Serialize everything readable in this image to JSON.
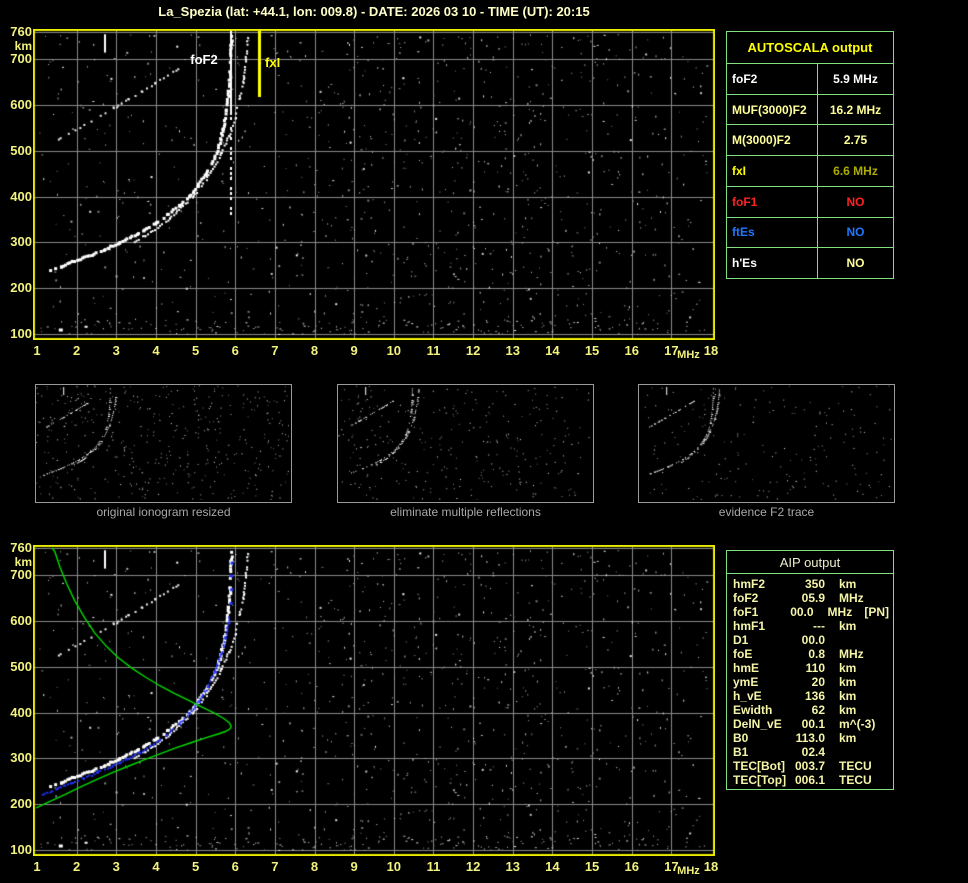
{
  "title": "La_Spezia (lat: +44.1, lon: 009.8) - DATE: 2026 03 10 - TIME (UT): 20:15",
  "colors": {
    "background": "#000000",
    "title_text": "#FFFFC8",
    "axis_text": "#F2F27E",
    "plot_border": "#ECEC00",
    "grid": "#8A8A8A",
    "table_border": "#80E080",
    "trace_white": "#FFFFFF",
    "profile_green": "#00DD00",
    "autoscaled_blue": "#2233FF",
    "marker_fxI_yellow": "#FFFF00",
    "caption_gray": "#A8A8A8"
  },
  "autoscala_table": {
    "header": "AUTOSCALA output",
    "rows": [
      {
        "label": "foF2",
        "value": "5.9 MHz",
        "label_color": "#FFFFFF",
        "value_color": "#FFFFFF"
      },
      {
        "label": "MUF(3000)F2",
        "value": "16.2 MHz",
        "label_color": "#FFFF99",
        "value_color": "#FFFF99"
      },
      {
        "label": "M(3000)F2",
        "value": "2.75",
        "label_color": "#FFFF99",
        "value_color": "#FFFF99"
      },
      {
        "label": "fxI",
        "value": "6.6 MHz",
        "label_color": "#FFFF00",
        "value_color": "#ABAB00"
      },
      {
        "label": "foF1",
        "value": "NO",
        "label_color": "#FF2222",
        "value_color": "#FF2222"
      },
      {
        "label": "ftEs",
        "value": "NO",
        "label_color": "#1E78FF",
        "value_color": "#1E78FF"
      },
      {
        "label": "h'Es",
        "value": "NO",
        "label_color": "#FFFFFF",
        "value_color": "#FFFF99"
      }
    ]
  },
  "aip_table": {
    "header": "AIP output",
    "rows": [
      {
        "label": "hmF2",
        "value": "350",
        "unit": "km",
        "note": ""
      },
      {
        "label": "foF2",
        "value": "05.9",
        "unit": "MHz",
        "note": ""
      },
      {
        "label": "foF1",
        "value": "00.0",
        "unit": "MHz",
        "note": "[PN]"
      },
      {
        "label": "hmF1",
        "value": "---",
        "unit": "km",
        "note": ""
      },
      {
        "label": "D1",
        "value": "00.0",
        "unit": "",
        "note": ""
      },
      {
        "label": "foE",
        "value": "0.8",
        "unit": "MHz",
        "note": ""
      },
      {
        "label": "hmE",
        "value": "110",
        "unit": "km",
        "note": ""
      },
      {
        "label": "ymE",
        "value": "20",
        "unit": "km",
        "note": ""
      },
      {
        "label": "h_vE",
        "value": "136",
        "unit": "km",
        "note": ""
      },
      {
        "label": "Ewidth",
        "value": "62",
        "unit": "km",
        "note": ""
      },
      {
        "label": "DelN_vE",
        "value": "00.1",
        "unit": "m^(-3)",
        "note": ""
      },
      {
        "label": "B0",
        "value": "113.0",
        "unit": "km",
        "note": ""
      },
      {
        "label": "B1",
        "value": "02.4",
        "unit": "",
        "note": ""
      },
      {
        "label": "TEC[Bot]",
        "value": "003.7",
        "unit": "TECU",
        "note": ""
      },
      {
        "label": "TEC[Top]",
        "value": "006.1",
        "unit": "TECU",
        "note": ""
      }
    ]
  },
  "thumbnails": [
    {
      "caption": "original ionogram resized"
    },
    {
      "caption": "eliminate multiple reflections"
    },
    {
      "caption": "evidence F2 trace"
    }
  ],
  "chart_data": [
    {
      "id": "top_ionogram",
      "type": "scatter",
      "xlabel": "MHz",
      "ylabel": "km",
      "xlim": [
        1,
        18
      ],
      "ylim": [
        100,
        760
      ],
      "grid": true,
      "x_ticks": [
        1,
        2,
        3,
        4,
        5,
        6,
        7,
        8,
        9,
        10,
        11,
        12,
        13,
        14,
        15,
        16,
        17,
        18
      ],
      "y_ticks": [
        760,
        700,
        600,
        500,
        400,
        300,
        200,
        100
      ],
      "cal_mark": {
        "freq": 2.72,
        "height_top": 755,
        "height_bottom": 715
      },
      "markers": [
        {
          "label": "foF2",
          "freq": 5.9,
          "color": "#FFFFFF",
          "label_side": "left"
        },
        {
          "label": "fxI",
          "freq": 6.6,
          "color": "#FFFF00",
          "label_side": "right"
        }
      ],
      "series": [
        {
          "name": "O-trace",
          "color": "#FFFFFF",
          "style": "dots",
          "weight": 3,
          "density": 0.8,
          "points": [
            [
              1.35,
              238
            ],
            [
              1.6,
              247
            ],
            [
              1.9,
              257
            ],
            [
              2.2,
              267
            ],
            [
              2.5,
              277
            ],
            [
              2.8,
              288
            ],
            [
              3.1,
              300
            ],
            [
              3.4,
              312
            ],
            [
              3.7,
              326
            ],
            [
              4.0,
              342
            ],
            [
              4.3,
              360
            ],
            [
              4.6,
              380
            ],
            [
              4.85,
              400
            ],
            [
              5.05,
              422
            ],
            [
              5.25,
              448
            ],
            [
              5.45,
              478
            ],
            [
              5.6,
              512
            ],
            [
              5.7,
              548
            ],
            [
              5.78,
              588
            ],
            [
              5.84,
              630
            ],
            [
              5.88,
              672
            ],
            [
              5.9,
              715
            ],
            [
              5.91,
              752
            ]
          ]
        },
        {
          "name": "X-trace",
          "color": "#FFFFFF",
          "style": "dots",
          "weight": 2,
          "density": 0.7,
          "points": [
            [
              3.45,
              300
            ],
            [
              3.75,
              315
            ],
            [
              4.05,
              332
            ],
            [
              4.35,
              352
            ],
            [
              4.65,
              375
            ],
            [
              4.95,
              400
            ],
            [
              5.2,
              428
            ],
            [
              5.45,
              460
            ],
            [
              5.65,
              495
            ],
            [
              5.85,
              532
            ],
            [
              6.0,
              572
            ],
            [
              6.12,
              615
            ],
            [
              6.22,
              658
            ],
            [
              6.28,
              700
            ],
            [
              6.32,
              745
            ]
          ]
        },
        {
          "name": "second-hop-trace",
          "color": "#EDEDED",
          "style": "dots",
          "weight": 2,
          "density": 0.5,
          "points": [
            [
              1.55,
              525
            ],
            [
              1.9,
              543
            ],
            [
              2.25,
              560
            ],
            [
              2.6,
              577
            ],
            [
              2.95,
              594
            ],
            [
              3.3,
              612
            ],
            [
              3.65,
              630
            ],
            [
              4.0,
              648
            ],
            [
              4.3,
              664
            ],
            [
              4.55,
              678
            ]
          ]
        }
      ]
    },
    {
      "id": "bottom_ionogram",
      "type": "scatter",
      "xlabel": "MHz",
      "ylabel": "km",
      "xlim": [
        1,
        18
      ],
      "ylim": [
        100,
        760
      ],
      "grid": true,
      "x_ticks": [
        1,
        2,
        3,
        4,
        5,
        6,
        7,
        8,
        9,
        10,
        11,
        12,
        13,
        14,
        15,
        16,
        17,
        18
      ],
      "y_ticks": [
        760,
        700,
        600,
        500,
        400,
        300,
        200,
        100
      ],
      "cal_mark": {
        "freq": 2.72,
        "height_top": 755,
        "height_bottom": 715
      },
      "series": [
        {
          "name": "O-trace",
          "color": "#FFFFFF",
          "style": "dots",
          "weight": 3,
          "density": 0.8,
          "points": [
            [
              1.35,
              238
            ],
            [
              1.6,
              247
            ],
            [
              1.9,
              257
            ],
            [
              2.2,
              267
            ],
            [
              2.5,
              277
            ],
            [
              2.8,
              288
            ],
            [
              3.1,
              300
            ],
            [
              3.4,
              312
            ],
            [
              3.7,
              326
            ],
            [
              4.0,
              342
            ],
            [
              4.3,
              360
            ],
            [
              4.6,
              380
            ],
            [
              4.85,
              400
            ],
            [
              5.05,
              422
            ],
            [
              5.25,
              448
            ],
            [
              5.45,
              478
            ],
            [
              5.6,
              512
            ],
            [
              5.7,
              548
            ],
            [
              5.78,
              588
            ],
            [
              5.84,
              630
            ],
            [
              5.88,
              672
            ],
            [
              5.9,
              715
            ],
            [
              5.91,
              752
            ]
          ]
        },
        {
          "name": "X-trace",
          "color": "#FFFFFF",
          "style": "dots",
          "weight": 2,
          "density": 0.7,
          "points": [
            [
              3.45,
              300
            ],
            [
              3.75,
              315
            ],
            [
              4.05,
              332
            ],
            [
              4.35,
              352
            ],
            [
              4.65,
              375
            ],
            [
              4.95,
              400
            ],
            [
              5.2,
              428
            ],
            [
              5.45,
              460
            ],
            [
              5.65,
              495
            ],
            [
              5.85,
              532
            ],
            [
              6.0,
              572
            ],
            [
              6.12,
              615
            ],
            [
              6.22,
              658
            ],
            [
              6.28,
              700
            ],
            [
              6.32,
              745
            ]
          ]
        },
        {
          "name": "second-hop-trace",
          "color": "#EDEDED",
          "style": "dots",
          "weight": 2,
          "density": 0.5,
          "points": [
            [
              1.55,
              525
            ],
            [
              1.9,
              543
            ],
            [
              2.25,
              560
            ],
            [
              2.6,
              577
            ],
            [
              2.95,
              594
            ],
            [
              3.3,
              612
            ],
            [
              3.65,
              630
            ],
            [
              4.0,
              648
            ],
            [
              4.3,
              664
            ],
            [
              4.55,
              678
            ]
          ]
        },
        {
          "name": "autoscaled-F2-trace",
          "color": "#2233FF",
          "style": "dots",
          "weight": 2,
          "density": 0.9,
          "points": [
            [
              1.15,
              222
            ],
            [
              1.5,
              233
            ],
            [
              1.85,
              245
            ],
            [
              2.2,
              257
            ],
            [
              2.55,
              270
            ],
            [
              2.9,
              283
            ],
            [
              3.25,
              297
            ],
            [
              3.6,
              313
            ],
            [
              3.95,
              331
            ],
            [
              4.3,
              352
            ],
            [
              4.6,
              375
            ],
            [
              4.85,
              398
            ],
            [
              5.1,
              425
            ],
            [
              5.3,
              455
            ],
            [
              5.5,
              490
            ],
            [
              5.65,
              528
            ],
            [
              5.76,
              565
            ],
            [
              5.84,
              595
            ],
            [
              5.86,
              610
            ]
          ]
        },
        {
          "name": "autoscaled-asymptote-dots",
          "color": "#2233FF",
          "style": "sparse-dots",
          "weight": 3,
          "density": 1,
          "points": [
            [
              5.88,
              640
            ],
            [
              5.9,
              670
            ],
            [
              5.9,
              700
            ],
            [
              5.91,
              728
            ]
          ]
        },
        {
          "name": "electron-density-profile",
          "color": "#00DD00",
          "style": "line",
          "weight": 1.4,
          "density": 1,
          "points": [
            [
              0.98,
              192
            ],
            [
              1.3,
              205
            ],
            [
              1.7,
              221
            ],
            [
              2.1,
              238
            ],
            [
              2.5,
              254
            ],
            [
              2.9,
              269
            ],
            [
              3.3,
              283
            ],
            [
              3.7,
              297
            ],
            [
              4.1,
              310
            ],
            [
              4.5,
              323
            ],
            [
              4.9,
              335
            ],
            [
              5.25,
              345
            ],
            [
              5.55,
              353
            ],
            [
              5.75,
              359
            ],
            [
              5.87,
              365
            ],
            [
              5.9,
              370
            ],
            [
              5.85,
              378
            ],
            [
              5.7,
              388
            ],
            [
              5.45,
              400
            ],
            [
              5.15,
              413
            ],
            [
              4.8,
              428
            ],
            [
              4.45,
              443
            ],
            [
              4.1,
              459
            ],
            [
              3.75,
              477
            ],
            [
              3.4,
              497
            ],
            [
              3.05,
              520
            ],
            [
              2.75,
              545
            ],
            [
              2.45,
              575
            ],
            [
              2.2,
              608
            ],
            [
              1.95,
              645
            ],
            [
              1.75,
              682
            ],
            [
              1.58,
              718
            ],
            [
              1.45,
              752
            ],
            [
              1.38,
              760
            ]
          ]
        }
      ]
    }
  ]
}
